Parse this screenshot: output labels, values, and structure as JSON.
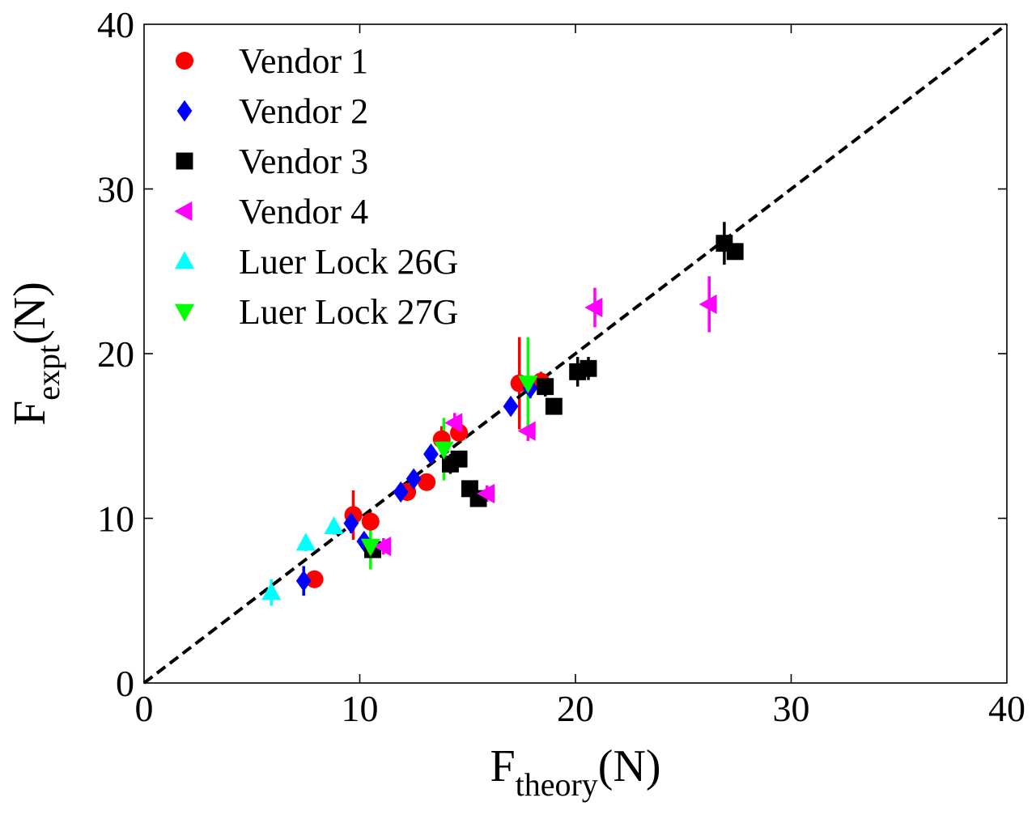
{
  "chart_data": {
    "type": "scatter",
    "xlabel": {
      "main": "F",
      "sub": "theory",
      "unit": "(N)"
    },
    "ylabel": {
      "main": "F",
      "sub": "expt",
      "unit": "(N)"
    },
    "xlim": [
      0,
      40
    ],
    "ylim": [
      0,
      40
    ],
    "xticks": [
      "0",
      "10",
      "20",
      "30",
      "40"
    ],
    "yticks": [
      "0",
      "10",
      "20",
      "30",
      "40"
    ],
    "grid": false,
    "legend_position": "top-left",
    "reference_line": {
      "style": "dashed",
      "color": "#000000",
      "x": [
        0,
        40
      ],
      "y": [
        0,
        40
      ]
    },
    "series": [
      {
        "name": "Vendor 1",
        "marker": "circle",
        "color": "#ff0000",
        "points": [
          {
            "x": 7.9,
            "y": 6.3,
            "err": 0.5
          },
          {
            "x": 9.7,
            "y": 10.2,
            "err": 1.5
          },
          {
            "x": 10.5,
            "y": 9.8,
            "err": 0.6
          },
          {
            "x": 12.2,
            "y": 11.6,
            "err": 0.5
          },
          {
            "x": 13.1,
            "y": 12.2,
            "err": 0.5
          },
          {
            "x": 13.8,
            "y": 14.8,
            "err": 0.8
          },
          {
            "x": 14.6,
            "y": 15.2,
            "err": 0.6
          },
          {
            "x": 17.4,
            "y": 18.2,
            "err": 2.8
          },
          {
            "x": 18.4,
            "y": 18.3,
            "err": 0.6
          }
        ]
      },
      {
        "name": "Vendor 2",
        "marker": "diamond",
        "color": "#0000ff",
        "points": [
          {
            "x": 7.4,
            "y": 6.2,
            "err": 0.9
          },
          {
            "x": 9.6,
            "y": 9.7,
            "err": 0.6
          },
          {
            "x": 10.2,
            "y": 8.6,
            "err": 0.5
          },
          {
            "x": 11.9,
            "y": 11.6,
            "err": 0.4
          },
          {
            "x": 12.5,
            "y": 12.4,
            "err": 0.4
          },
          {
            "x": 13.3,
            "y": 13.9,
            "err": 0.5
          },
          {
            "x": 17.0,
            "y": 16.8,
            "err": 0.4
          },
          {
            "x": 17.9,
            "y": 17.9,
            "err": 0.6
          }
        ]
      },
      {
        "name": "Vendor 3",
        "marker": "square",
        "color": "#000000",
        "points": [
          {
            "x": 10.6,
            "y": 8.1,
            "err": 0.5
          },
          {
            "x": 14.2,
            "y": 13.3,
            "err": 0.6
          },
          {
            "x": 14.6,
            "y": 13.6,
            "err": 0.5
          },
          {
            "x": 15.1,
            "y": 11.8,
            "err": 0.5
          },
          {
            "x": 15.5,
            "y": 11.2,
            "err": 0.5
          },
          {
            "x": 18.6,
            "y": 18.0,
            "err": 0.6
          },
          {
            "x": 19.0,
            "y": 16.8,
            "err": 0.5
          },
          {
            "x": 20.1,
            "y": 18.9,
            "err": 0.9
          },
          {
            "x": 20.6,
            "y": 19.1,
            "err": 0.7
          },
          {
            "x": 26.9,
            "y": 26.7,
            "err": 1.3
          },
          {
            "x": 27.4,
            "y": 26.2,
            "err": 0.5
          }
        ]
      },
      {
        "name": "Vendor 4",
        "marker": "triangle-left",
        "color": "#ff00ff",
        "points": [
          {
            "x": 11.1,
            "y": 8.3,
            "err": 0.5
          },
          {
            "x": 14.4,
            "y": 15.8,
            "err": 0.6
          },
          {
            "x": 15.9,
            "y": 11.5,
            "err": 0.5
          },
          {
            "x": 17.8,
            "y": 15.3,
            "err": 0.6
          },
          {
            "x": 20.9,
            "y": 22.8,
            "err": 1.2
          },
          {
            "x": 26.2,
            "y": 23.0,
            "err": 1.7
          }
        ]
      },
      {
        "name": "Luer Lock 26G",
        "marker": "triangle-up",
        "color": "#00ffff",
        "points": [
          {
            "x": 5.9,
            "y": 5.5,
            "err": 0.8
          },
          {
            "x": 7.5,
            "y": 8.5,
            "err": 0.5
          },
          {
            "x": 8.8,
            "y": 9.5,
            "err": 0.5
          }
        ]
      },
      {
        "name": "Luer Lock 27G",
        "marker": "triangle-down",
        "color": "#00ff00",
        "points": [
          {
            "x": 10.5,
            "y": 8.3,
            "err": 1.4
          },
          {
            "x": 13.9,
            "y": 14.2,
            "err": 1.9
          },
          {
            "x": 17.8,
            "y": 18.2,
            "err": 2.8
          }
        ]
      }
    ]
  }
}
